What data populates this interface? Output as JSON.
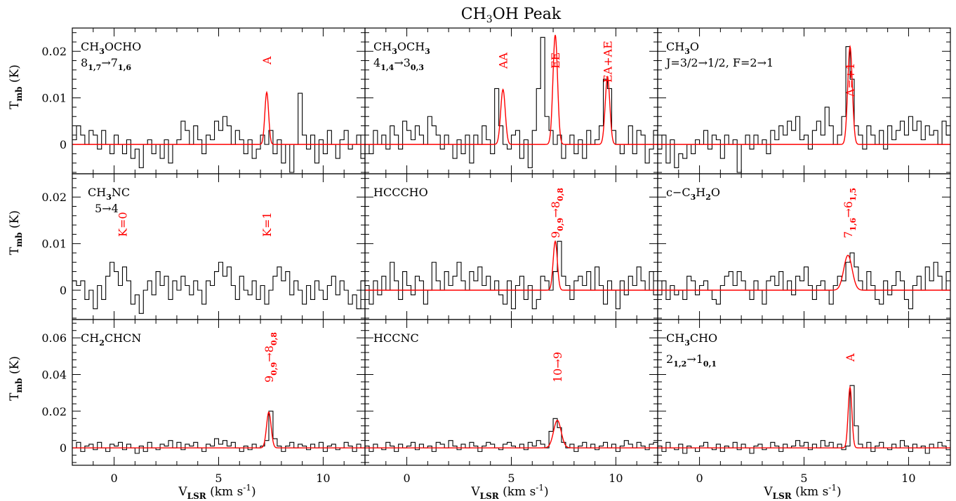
{
  "figure": {
    "title_main": "CH",
    "title_sub": "3",
    "title_rest": "OH Peak",
    "ylabel_main": "T",
    "ylabel_sub": "mb",
    "ylabel_rest": " (K)",
    "xlabel_main": "V",
    "xlabel_sub": "LSR",
    "xlabel_rest": " (km s",
    "xlabel_sup": "-1",
    "xlabel_end": ")",
    "colors": {
      "data": "#000000",
      "fit": "#ff0000",
      "annotation": "#ff0000"
    }
  },
  "chart_data": [
    {
      "type": "line",
      "panel": "CH3OCHO",
      "species": [
        [
          "CH",
          "n"
        ],
        [
          "3",
          "sub"
        ],
        [
          "OCHO",
          "n"
        ]
      ],
      "transition": [
        [
          "8",
          "n"
        ],
        [
          "1,7",
          "sub"
        ],
        [
          "→7",
          "n"
        ],
        [
          "1,6",
          "sub"
        ]
      ],
      "xlim": [
        -2,
        12
      ],
      "ylim": [
        -0.0063,
        0.025
      ],
      "yticks": [
        0,
        0.01,
        0.02
      ],
      "ytick_labels": [
        "0",
        "0.01",
        "0.02"
      ],
      "xticks": [
        0,
        5,
        10
      ],
      "xtick_labels": [],
      "components": [
        {
          "label": [
            [
              "A",
              "n"
            ]
          ],
          "center": 7.3,
          "amp": 0.0112,
          "sigma": 0.09
        }
      ],
      "spectrum_x0": -2,
      "spectrum_dx": 0.2,
      "spectrum_y": [
        0.001,
        0.004,
        0.002,
        0.0,
        0.003,
        0.002,
        -0.001,
        0.003,
        0.0,
        -0.002,
        0.002,
        0.0,
        -0.002,
        0.001,
        -0.003,
        -0.001,
        -0.005,
        0.0,
        0.001,
        -0.002,
        0.0,
        -0.003,
        0.001,
        -0.004,
        0.0,
        0.001,
        0.005,
        0.003,
        0.0,
        0.004,
        0.001,
        -0.002,
        0.002,
        0.001,
        0.005,
        0.003,
        0.006,
        0.004,
        0.0,
        0.003,
        0.001,
        -0.002,
        0.001,
        -0.003,
        -0.001,
        0.002,
        0.0,
        0.003,
        -0.002,
        0.001,
        -0.004,
        0.0,
        -0.006,
        0.0,
        0.011,
        0.002,
        -0.001,
        0.002,
        -0.004,
        0.001,
        -0.002,
        0.003,
        0.0,
        -0.003,
        0.001,
        0.003,
        -0.001,
        0.0,
        0.002,
        -0.003,
        0.0
      ]
    },
    {
      "type": "line",
      "panel": "CH3OCH3",
      "species": [
        [
          "CH",
          "n"
        ],
        [
          "3",
          "sub"
        ],
        [
          "OCH",
          "n"
        ],
        [
          "3",
          "sub"
        ]
      ],
      "transition": [
        [
          "4",
          "n"
        ],
        [
          "1,4",
          "sub"
        ],
        [
          "→3",
          "n"
        ],
        [
          "0,3",
          "sub"
        ]
      ],
      "xlim": [
        -2,
        12
      ],
      "ylim": [
        -0.0063,
        0.025
      ],
      "yticks": [
        0,
        0.01,
        0.02
      ],
      "ytick_labels": [],
      "xticks": [
        0,
        5,
        10
      ],
      "xtick_labels": [],
      "components": [
        {
          "label": [
            [
              "AA",
              "n"
            ]
          ],
          "center": 4.6,
          "amp": 0.0118,
          "sigma": 0.11
        },
        {
          "label": [
            [
              "EE",
              "n"
            ]
          ],
          "center": 7.1,
          "amp": 0.0235,
          "sigma": 0.11
        },
        {
          "label": [
            [
              "EA+AE",
              "n"
            ]
          ],
          "center": 9.6,
          "amp": 0.0145,
          "sigma": 0.11
        }
      ],
      "spectrum_x0": -2,
      "spectrum_dx": 0.2,
      "spectrum_y": [
        0.0,
        -0.002,
        0.003,
        0.0,
        0.002,
        -0.001,
        0.004,
        0.002,
        -0.001,
        0.005,
        0.003,
        0.001,
        0.004,
        0.002,
        0.0,
        0.006,
        0.004,
        0.002,
        -0.001,
        0.002,
        0.0,
        -0.003,
        0.001,
        -0.002,
        0.002,
        -0.004,
        0.002,
        0.0,
        0.004,
        0.001,
        -0.002,
        0.012,
        0.004,
        0.0,
        -0.001,
        0.002,
        0.003,
        -0.003,
        0.001,
        -0.005,
        0.003,
        0.012,
        0.023,
        0.006,
        0.003,
        0.0,
        0.002,
        -0.003,
        0.0,
        0.002,
        -0.002,
        0.001,
        -0.003,
        0.003,
        0.0,
        0.001,
        0.004,
        0.014,
        0.012,
        0.003,
        0.0,
        -0.002,
        0.0,
        0.004,
        -0.002,
        0.003,
        0.002,
        -0.004,
        -0.001,
        0.003,
        -0.001
      ]
    },
    {
      "type": "line",
      "panel": "CH3O",
      "species": [
        [
          "CH",
          "n"
        ],
        [
          "3",
          "sub"
        ],
        [
          "O",
          "n"
        ]
      ],
      "transition": [
        [
          "J=3/2→1/2, F=2→1",
          "n"
        ]
      ],
      "xlim": [
        -2,
        12
      ],
      "ylim": [
        -0.0063,
        0.025
      ],
      "yticks": [
        0,
        0.01,
        0.02
      ],
      "ytick_labels": [],
      "xticks": [
        0,
        5,
        10
      ],
      "xtick_labels": [],
      "components": [
        {
          "label": [
            [
              "Λ=+1",
              "n"
            ]
          ],
          "center": 7.2,
          "amp": 0.021,
          "sigma": 0.11
        }
      ],
      "spectrum_x0": -2,
      "spectrum_dx": 0.2,
      "spectrum_y": [
        -0.001,
        0.002,
        -0.004,
        0.001,
        -0.005,
        -0.002,
        -0.003,
        0.0,
        -0.002,
        0.001,
        0.0,
        0.003,
        -0.001,
        0.002,
        0.001,
        -0.003,
        0.002,
        0.0,
        0.001,
        -0.006,
        0.0,
        0.002,
        -0.001,
        0.002,
        0.0,
        0.001,
        -0.002,
        0.003,
        0.001,
        0.004,
        0.002,
        0.005,
        0.003,
        0.006,
        0.001,
        0.002,
        -0.001,
        0.003,
        0.005,
        0.002,
        0.008,
        0.004,
        0.0,
        0.002,
        0.006,
        0.021,
        0.014,
        0.004,
        0.002,
        -0.001,
        0.004,
        0.002,
        0.0,
        0.003,
        -0.001,
        0.004,
        0.001,
        0.003,
        0.005,
        0.002,
        0.006,
        0.003,
        0.005,
        0.001,
        0.004,
        0.002,
        0.003,
        0.0,
        0.005,
        0.002,
        0.004
      ]
    },
    {
      "type": "line",
      "panel": "CH3NC",
      "species": [
        [
          "CH",
          "n"
        ],
        [
          "3",
          "sub"
        ],
        [
          "NC",
          "n"
        ]
      ],
      "transition": [
        [
          "5→4",
          "n"
        ]
      ],
      "xlim": [
        -2,
        12
      ],
      "ylim": [
        -0.0063,
        0.025
      ],
      "yticks": [
        0,
        0.01,
        0.02
      ],
      "ytick_labels": [
        "0",
        "0.01",
        "0.02"
      ],
      "xticks": [
        0,
        5,
        10
      ],
      "xtick_labels": [],
      "components": [
        {
          "label": [
            [
              "K=0",
              "n"
            ]
          ],
          "center": 0.4,
          "amp": 0,
          "sigma": 0.1
        },
        {
          "label": [
            [
              "K=1",
              "n"
            ]
          ],
          "center": 7.3,
          "amp": 0,
          "sigma": 0.1
        }
      ],
      "no_fit": true,
      "spectrum_x0": -2,
      "spectrum_dx": 0.2,
      "spectrum_y": [
        0.002,
        0.001,
        0.002,
        -0.002,
        0.0,
        -0.004,
        0.001,
        -0.002,
        0.003,
        0.006,
        0.004,
        0.001,
        0.005,
        0.002,
        -0.003,
        -0.001,
        -0.005,
        0.0,
        0.002,
        -0.001,
        0.004,
        0.001,
        0.003,
        -0.002,
        0.002,
        0.0,
        0.003,
        0.001,
        -0.001,
        0.002,
        0.0,
        -0.003,
        0.002,
        0.001,
        0.004,
        0.006,
        0.003,
        0.005,
        0.001,
        -0.002,
        0.003,
        0.0,
        -0.001,
        0.002,
        -0.002,
        0.001,
        -0.003,
        0.0,
        0.003,
        0.005,
        0.002,
        0.004,
        -0.001,
        0.002,
        0.0,
        -0.003,
        0.001,
        -0.002,
        0.002,
        0.0,
        -0.002,
        0.001,
        0.003,
        -0.001,
        0.002,
        0.0,
        -0.003,
        -0.001,
        -0.004,
        0.002,
        0.001
      ]
    },
    {
      "type": "line",
      "panel": "HCCCHO",
      "species": [
        [
          "HCCCHO",
          "n"
        ]
      ],
      "transition": [],
      "xlim": [
        -2,
        12
      ],
      "ylim": [
        -0.0063,
        0.025
      ],
      "yticks": [
        0,
        0.01,
        0.02
      ],
      "ytick_labels": [],
      "xticks": [
        0,
        5,
        10
      ],
      "xtick_labels": [],
      "components": [
        {
          "label": [
            [
              "9",
              "n"
            ],
            [
              "0,9",
              "sub"
            ],
            [
              "→8",
              "n"
            ],
            [
              "0,8",
              "sub"
            ]
          ],
          "center": 7.1,
          "amp": 0.0105,
          "sigma": 0.1
        }
      ],
      "spectrum_x0": -2,
      "spectrum_dx": 0.2,
      "spectrum_y": [
        0.001,
        -0.003,
        0.002,
        -0.001,
        0.003,
        0.0,
        0.006,
        0.002,
        -0.002,
        0.004,
        0.001,
        -0.001,
        0.003,
        0.002,
        -0.003,
        0.0,
        0.006,
        0.002,
        0.0,
        0.004,
        0.001,
        0.003,
        0.006,
        0.002,
        0.0,
        0.004,
        0.002,
        0.005,
        0.001,
        0.003,
        0.0,
        0.002,
        -0.001,
        -0.003,
        0.002,
        -0.004,
        0.001,
        0.003,
        -0.002,
        0.001,
        -0.004,
        -0.002,
        0.003,
        0.002,
        0.0,
        0.004,
        0.0105,
        0.003,
        0.001,
        -0.002,
        0.002,
        0.003,
        0.001,
        0.004,
        0.0,
        0.005,
        0.001,
        -0.003,
        0.002,
        0.0,
        -0.004,
        0.002,
        -0.001,
        0.003,
        0.001,
        0.005,
        0.002,
        0.0,
        0.004,
        -0.001,
        0.003
      ]
    },
    {
      "type": "line",
      "panel": "c-C3H2O",
      "species": [
        [
          "c−C",
          "n"
        ],
        [
          "3",
          "sub"
        ],
        [
          "H",
          "n"
        ],
        [
          "2",
          "sub"
        ],
        [
          "O",
          "n"
        ]
      ],
      "transition": [],
      "xlim": [
        -2,
        12
      ],
      "ylim": [
        -0.0063,
        0.025
      ],
      "yticks": [
        0,
        0.01,
        0.02
      ],
      "ytick_labels": [],
      "xticks": [
        0,
        5,
        10
      ],
      "xtick_labels": [],
      "components": [
        {
          "label": [
            [
              "7",
              "n"
            ],
            [
              "1,6",
              "sub"
            ],
            [
              "→6",
              "n"
            ],
            [
              "1,5",
              "sub"
            ]
          ],
          "center": 7.1,
          "amp": 0.0075,
          "sigma": 0.2
        }
      ],
      "spectrum_x0": -2,
      "spectrum_dx": 0.2,
      "spectrum_y": [
        -0.001,
        0.002,
        -0.002,
        0.001,
        -0.001,
        0.0,
        -0.002,
        0.003,
        0.002,
        -0.001,
        0.001,
        0.002,
        0.0,
        -0.002,
        -0.003,
        0.001,
        0.003,
        0.004,
        0.001,
        0.004,
        0.002,
        0.0,
        -0.002,
        0.002,
        0.0,
        -0.003,
        0.002,
        0.003,
        0.001,
        0.004,
        0.0,
        0.002,
        -0.001,
        0.003,
        0.002,
        0.005,
        0.001,
        -0.002,
        0.001,
        0.002,
        0.0,
        -0.003,
        0.001,
        0.003,
        0.002,
        0.006,
        0.008,
        0.005,
        0.002,
        0.0,
        0.004,
        0.001,
        -0.002,
        -0.003,
        0.002,
        -0.001,
        0.001,
        0.004,
        0.002,
        -0.002,
        -0.004,
        0.001,
        0.003,
        0.0,
        0.005,
        0.002,
        0.006,
        0.003,
        0.0,
        0.004,
        0.009
      ]
    },
    {
      "type": "line",
      "panel": "CH2CHCN",
      "species": [
        [
          "CH",
          "n"
        ],
        [
          "2",
          "sub"
        ],
        [
          "CHCN",
          "n"
        ]
      ],
      "transition": [],
      "xlim": [
        -2,
        12
      ],
      "ylim": [
        -0.0095,
        0.07
      ],
      "yticks": [
        0,
        0.02,
        0.04,
        0.06
      ],
      "ytick_labels": [
        "0",
        "0.02",
        "0.04",
        "0.06"
      ],
      "xticks": [
        0,
        5,
        10
      ],
      "xtick_labels": [
        "0",
        "5",
        "10"
      ],
      "components": [
        {
          "label": [
            [
              "9",
              "n"
            ],
            [
              "0,9",
              "sub"
            ],
            [
              "→8",
              "n"
            ],
            [
              "0,8",
              "sub"
            ]
          ],
          "center": 7.4,
          "amp": 0.0195,
          "sigma": 0.11
        }
      ],
      "spectrum_x0": -2,
      "spectrum_dx": 0.2,
      "spectrum_y": [
        0.0,
        0.003,
        -0.002,
        0.001,
        0.002,
        -0.001,
        0.003,
        0.0,
        -0.002,
        0.002,
        0.001,
        0.003,
        -0.001,
        0.002,
        0.0,
        -0.003,
        0.001,
        -0.002,
        0.003,
        0.0,
        -0.001,
        0.002,
        0.001,
        0.004,
        0.0,
        0.003,
        -0.001,
        0.002,
        0.001,
        0.003,
        0.0,
        -0.002,
        0.002,
        0.001,
        0.005,
        0.002,
        0.004,
        0.001,
        0.003,
        0.0,
        -0.002,
        0.001,
        -0.001,
        0.002,
        0.0,
        0.001,
        0.004,
        0.02,
        0.005,
        0.001,
        -0.002,
        0.001,
        0.003,
        0.0,
        0.002,
        0.001,
        -0.001,
        0.002,
        0.0,
        0.003,
        -0.002,
        0.001,
        0.002,
        -0.001,
        0.0,
        0.003,
        0.001,
        -0.002,
        0.002,
        0.0,
        0.001
      ]
    },
    {
      "type": "line",
      "panel": "HCCNC",
      "species": [
        [
          "HCCNC",
          "n"
        ]
      ],
      "transition": [],
      "xlim": [
        -2,
        12
      ],
      "ylim": [
        -0.0095,
        0.07
      ],
      "yticks": [
        0,
        0.02,
        0.04,
        0.06
      ],
      "ytick_labels": [],
      "xticks": [
        0,
        5,
        10
      ],
      "xtick_labels": [
        "0",
        "5",
        "10"
      ],
      "components": [
        {
          "label": [
            [
              "10→9",
              "n"
            ]
          ],
          "center": 7.2,
          "amp": 0.015,
          "sigma": 0.18
        }
      ],
      "spectrum_x0": -2,
      "spectrum_dx": 0.2,
      "spectrum_y": [
        0.001,
        -0.002,
        0.002,
        0.0,
        -0.001,
        0.003,
        0.001,
        -0.002,
        0.002,
        0.0,
        0.001,
        0.003,
        -0.001,
        0.002,
        0.0,
        0.001,
        -0.002,
        0.003,
        0.002,
        0.0,
        0.004,
        0.001,
        -0.001,
        0.002,
        0.0,
        0.003,
        0.001,
        -0.002,
        0.001,
        0.003,
        0.002,
        0.0,
        -0.001,
        0.002,
        0.003,
        0.001,
        0.0,
        0.002,
        -0.001,
        0.003,
        0.001,
        0.004,
        0.002,
        0.0,
        0.009,
        0.016,
        0.011,
        0.003,
        0.0,
        0.002,
        -0.002,
        0.001,
        0.003,
        0.0,
        0.002,
        -0.001,
        0.001,
        0.003,
        0.0,
        0.002,
        -0.002,
        0.001,
        0.004,
        0.002,
        0.0,
        0.003,
        0.001,
        -0.001,
        0.002,
        0.003,
        0.0
      ]
    },
    {
      "type": "line",
      "panel": "CH3CHO",
      "species": [
        [
          "CH",
          "n"
        ],
        [
          "3",
          "sub"
        ],
        [
          "CHO",
          "n"
        ]
      ],
      "transition": [
        [
          "2",
          "n"
        ],
        [
          "1,2",
          "sub"
        ],
        [
          "→1",
          "n"
        ],
        [
          "0,1",
          "sub"
        ]
      ],
      "xlim": [
        -2,
        12
      ],
      "ylim": [
        -0.0095,
        0.07
      ],
      "yticks": [
        0,
        0.02,
        0.04,
        0.06
      ],
      "ytick_labels": [],
      "xticks": [
        0,
        5,
        10
      ],
      "xtick_labels": [
        "0",
        "5",
        "10"
      ],
      "components": [
        {
          "label": [
            [
              "A",
              "n"
            ]
          ],
          "center": 7.2,
          "amp": 0.033,
          "sigma": 0.09
        }
      ],
      "spectrum_x0": -2,
      "spectrum_dx": 0.2,
      "spectrum_y": [
        0.001,
        -0.002,
        0.003,
        0.0,
        -0.001,
        0.002,
        -0.003,
        0.001,
        0.0,
        -0.002,
        0.001,
        0.003,
        0.0,
        -0.001,
        0.002,
        -0.002,
        0.001,
        0.0,
        0.003,
        -0.001,
        0.002,
        0.0,
        -0.003,
        0.001,
        0.002,
        -0.001,
        0.0,
        0.003,
        0.001,
        -0.002,
        0.002,
        0.0,
        0.001,
        0.004,
        0.001,
        0.003,
        -0.001,
        0.002,
        0.0,
        0.004,
        0.001,
        0.003,
        0.0,
        0.002,
        -0.001,
        0.001,
        0.034,
        0.012,
        0.002,
        0.0,
        0.003,
        -0.002,
        0.001,
        0.003,
        0.0,
        -0.001,
        0.002,
        0.0,
        0.004,
        0.001,
        -0.002,
        0.002,
        0.0,
        0.001,
        -0.003,
        0.002,
        0.0,
        0.003,
        0.001,
        -0.001,
        0.002
      ]
    }
  ]
}
